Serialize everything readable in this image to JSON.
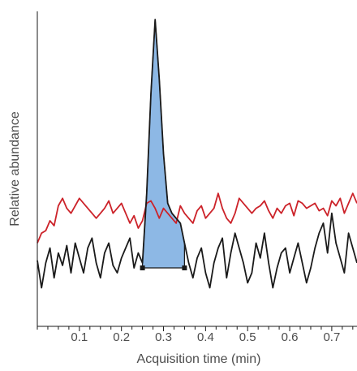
{
  "chart_data": {
    "type": "line",
    "xlabel": "Acquisition time (min)",
    "ylabel": "Relative abundance",
    "xlim": [
      0.0,
      0.76
    ],
    "ylim": [
      0,
      100
    ],
    "x_ticks": [
      0.1,
      0.2,
      0.3,
      0.4,
      0.5,
      0.6,
      0.7
    ],
    "x_minor_step": 0.025,
    "grid": false,
    "legend": "none",
    "colors": {
      "black_trace": "#1a1a1a",
      "red_trace": "#cc2229",
      "peak_fill": "#8db8e5"
    },
    "series": [
      {
        "color": "#cc2229",
        "x": [
          0.0,
          0.01,
          0.02,
          0.03,
          0.04,
          0.05,
          0.06,
          0.07,
          0.08,
          0.09,
          0.1,
          0.11,
          0.12,
          0.13,
          0.14,
          0.15,
          0.16,
          0.17,
          0.18,
          0.19,
          0.2,
          0.21,
          0.22,
          0.23,
          0.24,
          0.25,
          0.26,
          0.27,
          0.28,
          0.29,
          0.3,
          0.31,
          0.32,
          0.33,
          0.34,
          0.35,
          0.36,
          0.37,
          0.38,
          0.39,
          0.4,
          0.41,
          0.42,
          0.43,
          0.44,
          0.45,
          0.46,
          0.47,
          0.48,
          0.49,
          0.5,
          0.51,
          0.52,
          0.53,
          0.54,
          0.55,
          0.56,
          0.57,
          0.58,
          0.59,
          0.6,
          0.61,
          0.62,
          0.63,
          0.64,
          0.65,
          0.66,
          0.67,
          0.68,
          0.69,
          0.7,
          0.71,
          0.72,
          0.73,
          0.74,
          0.75,
          0.76
        ],
        "values": [
          10,
          14,
          15,
          19,
          17,
          25,
          28,
          24,
          22,
          25,
          28,
          26,
          24,
          22,
          20,
          22,
          24,
          27,
          22,
          24,
          26,
          22,
          18,
          21,
          16,
          19,
          26,
          27,
          24,
          20,
          24,
          22,
          20,
          18,
          25,
          22,
          20,
          18,
          23,
          25,
          20,
          22,
          24,
          30,
          24,
          20,
          18,
          22,
          28,
          26,
          24,
          22,
          24,
          25,
          27,
          23,
          20,
          24,
          22,
          25,
          26,
          21,
          27,
          26,
          24,
          25,
          26,
          23,
          24,
          21,
          27,
          25,
          28,
          22,
          26,
          30,
          26
        ]
      },
      {
        "color": "#1a1a1a",
        "x": [
          0.0,
          0.01,
          0.02,
          0.03,
          0.04,
          0.05,
          0.06,
          0.07,
          0.08,
          0.09,
          0.1,
          0.11,
          0.12,
          0.13,
          0.14,
          0.15,
          0.16,
          0.17,
          0.18,
          0.19,
          0.2,
          0.21,
          0.22,
          0.23,
          0.24,
          0.25,
          0.26,
          0.27,
          0.28,
          0.29,
          0.3,
          0.31,
          0.32,
          0.33,
          0.34,
          0.35,
          0.36,
          0.37,
          0.38,
          0.39,
          0.4,
          0.41,
          0.42,
          0.43,
          0.44,
          0.45,
          0.46,
          0.47,
          0.48,
          0.49,
          0.5,
          0.51,
          0.52,
          0.53,
          0.54,
          0.55,
          0.56,
          0.57,
          0.58,
          0.59,
          0.6,
          0.61,
          0.62,
          0.63,
          0.64,
          0.65,
          0.66,
          0.67,
          0.68,
          0.69,
          0.7,
          0.71,
          0.72,
          0.73,
          0.74,
          0.75,
          0.76
        ],
        "values": [
          3,
          -8,
          2,
          8,
          -4,
          6,
          1,
          9,
          -2,
          10,
          4,
          -2,
          8,
          12,
          2,
          -4,
          6,
          10,
          1,
          -2,
          4,
          8,
          12,
          0,
          6,
          2,
          30,
          70,
          100,
          76,
          46,
          26,
          22,
          20,
          18,
          10,
          2,
          -4,
          4,
          8,
          -2,
          -8,
          2,
          8,
          12,
          -4,
          6,
          14,
          8,
          2,
          -6,
          -2,
          10,
          4,
          14,
          2,
          -8,
          0,
          6,
          8,
          -2,
          4,
          10,
          2,
          -6,
          0,
          8,
          14,
          18,
          6,
          22,
          10,
          4,
          -2,
          14,
          8,
          2
        ]
      }
    ],
    "shaded_peak": {
      "color": "#8db8e5",
      "x_start": 0.25,
      "x_end": 0.35,
      "baseline": 0
    }
  }
}
